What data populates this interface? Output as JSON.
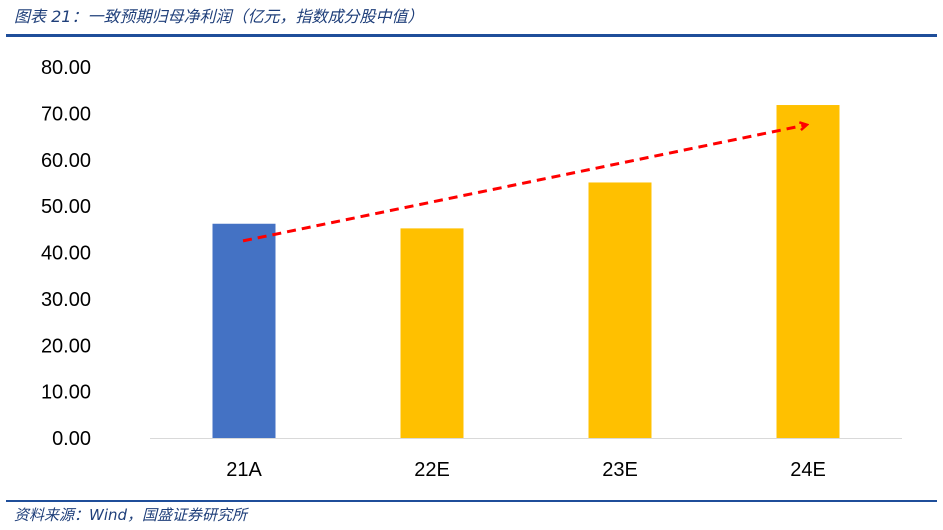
{
  "figure": {
    "title": "图表 21：一致预期归母净利润（亿元，指数成分股中值）",
    "source": "资料来源：Wind，国盛证券研究所"
  },
  "chart_data": {
    "type": "bar",
    "title": "",
    "xlabel": "",
    "ylabel": "",
    "categories": [
      "21A",
      "22E",
      "23E",
      "24E"
    ],
    "values": [
      46.2,
      45.2,
      55.1,
      71.8
    ],
    "bar_colors": [
      "#4472C4",
      "#FFC000",
      "#FFC000",
      "#FFC000"
    ],
    "ylim": [
      0,
      80
    ],
    "yticks": [
      "0.00",
      "10.00",
      "20.00",
      "30.00",
      "40.00",
      "50.00",
      "60.00",
      "70.00",
      "80.00"
    ],
    "grid": false,
    "legend": "none",
    "trend_arrow": {
      "from": {
        "x": "21A",
        "y": 42.5
      },
      "to": {
        "x": "24E",
        "y": 67.5
      },
      "color": "#FF0000"
    }
  }
}
